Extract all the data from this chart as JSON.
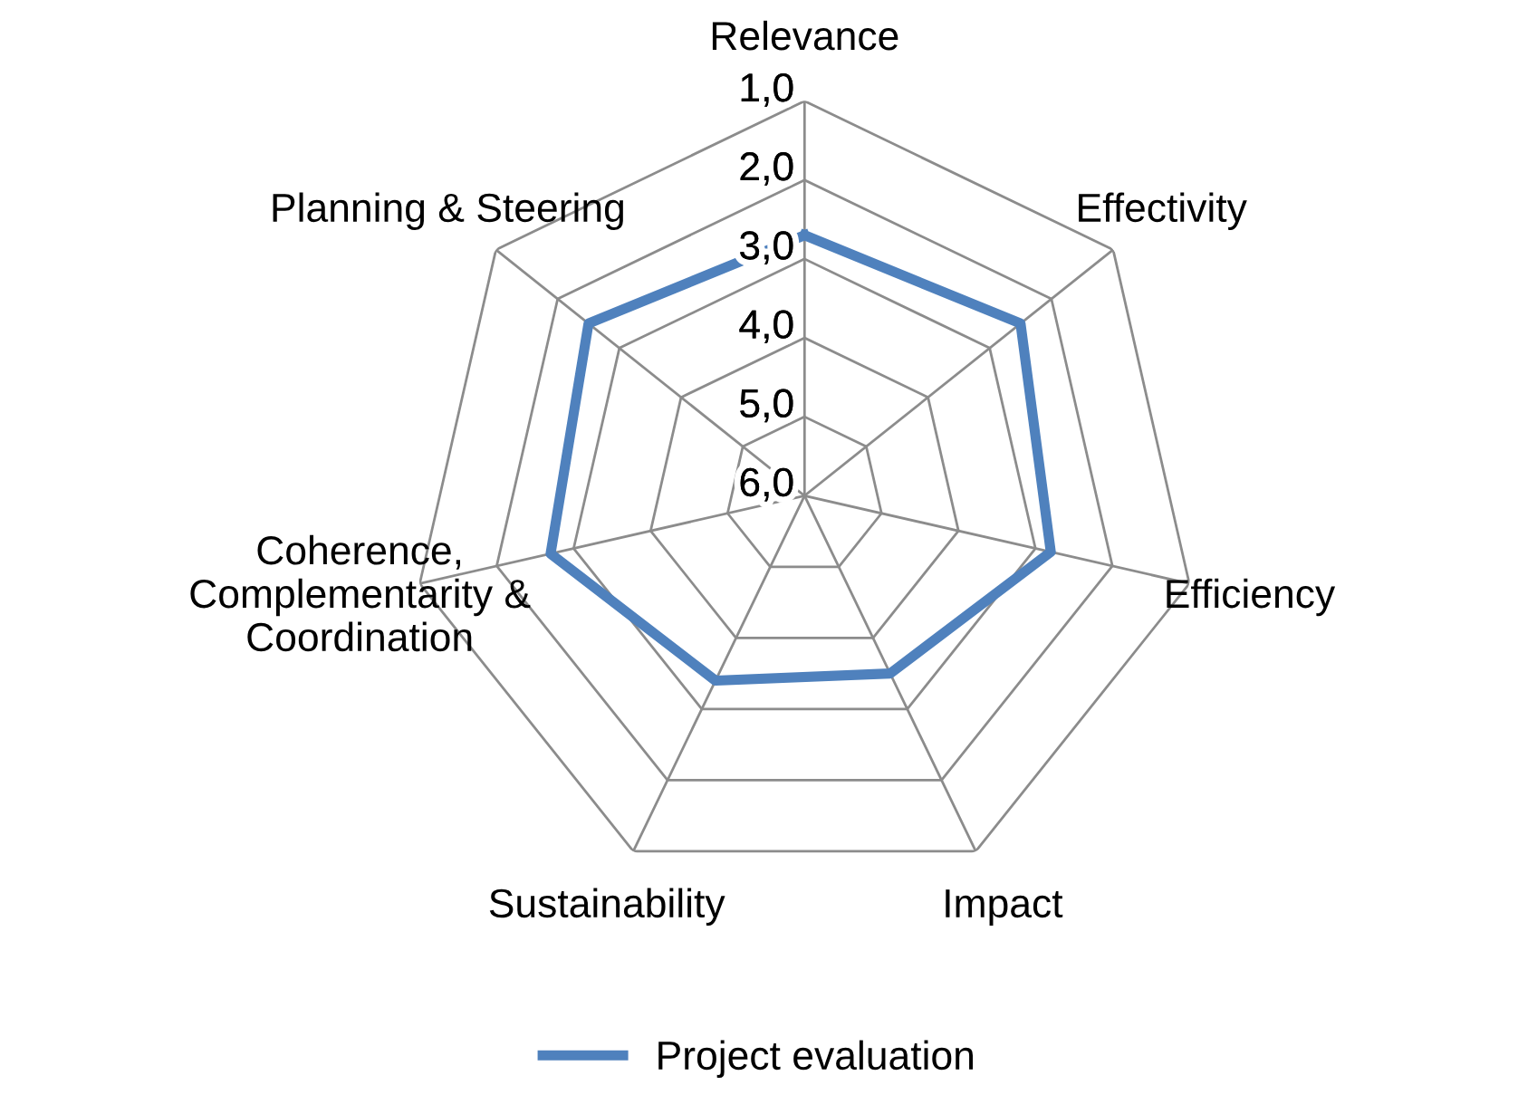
{
  "chart_data": {
    "type": "radar",
    "categories": [
      "Relevance",
      "Effectivity",
      "Efficiency",
      "Impact",
      "Sustainability",
      "Coherence,\nComplementarity &\nCoordination",
      "Planning & Steering"
    ],
    "series": [
      {
        "name": "Project evaluation",
        "color": "#4f81bd",
        "values": [
          2.7,
          2.5,
          2.8,
          3.5,
          3.4,
          2.7,
          2.5
        ]
      }
    ],
    "ylim": [
      6,
      1
    ],
    "yticks": [
      {
        "value": 1,
        "label": "1,0"
      },
      {
        "value": 2,
        "label": "2,0"
      },
      {
        "value": 3,
        "label": "3,0"
      },
      {
        "value": 4,
        "label": "4,0"
      },
      {
        "value": 5,
        "label": "5,0"
      },
      {
        "value": 6,
        "label": "6,0"
      }
    ],
    "grid": true,
    "legend": "bottom"
  }
}
